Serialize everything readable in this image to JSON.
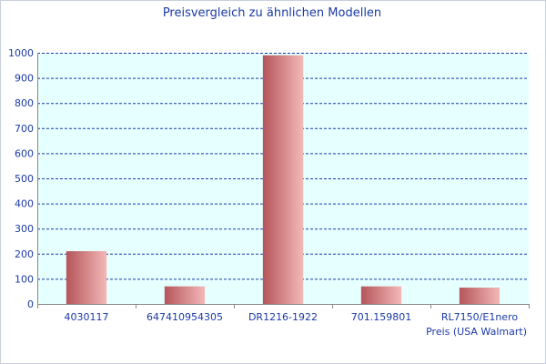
{
  "chart_data": {
    "type": "bar",
    "title": "Preisvergleich zu ähnlichen Modellen",
    "xlabel": "Preis (USA Walmart)",
    "ylabel": "",
    "categories": [
      "4030117",
      "647410954305",
      "DR1216-1922",
      "701.159801",
      "RL7150/E1nero"
    ],
    "values": [
      210,
      70,
      990,
      70,
      65
    ],
    "ylim": [
      0,
      1000
    ],
    "yticks": [
      0,
      100,
      200,
      300,
      400,
      500,
      600,
      700,
      800,
      900,
      1000
    ],
    "grid": true,
    "legend": "none",
    "colors": {
      "plot_background": "#e6ffff",
      "grid": "#1a3aa8",
      "bar_dark": "#b5555a",
      "bar_light": "#f4b8b8",
      "text": "#1a3aa8"
    }
  }
}
